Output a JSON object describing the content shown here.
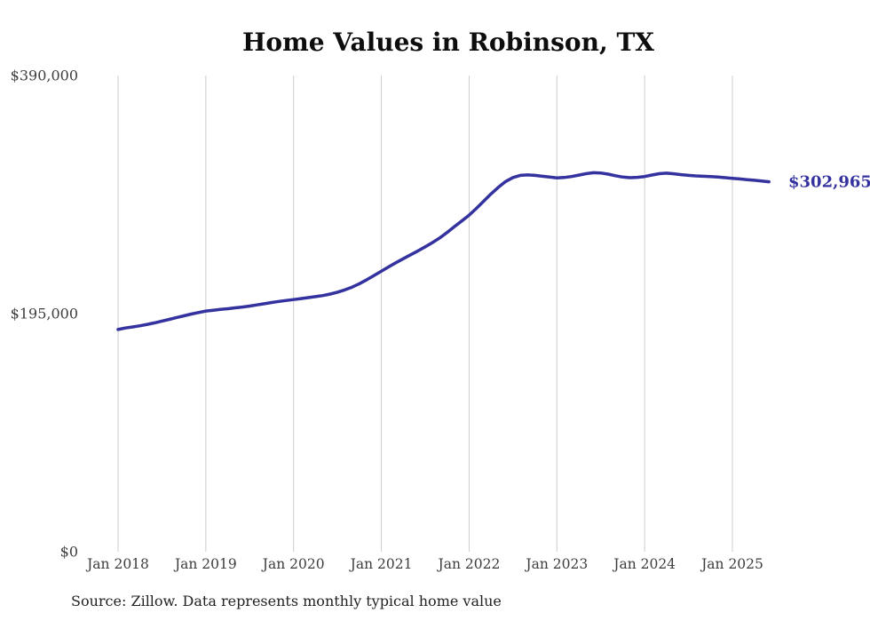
{
  "colors": {
    "background": "#ffffff",
    "line": "#34329f",
    "grid": "#cccccc",
    "title": "#0d0d0d",
    "axis_label": "#3d3d3d",
    "end_label": "#34329f",
    "source": "#222222"
  },
  "chart_data": {
    "type": "line",
    "title": "Home Values in Robinson, TX",
    "source_note": "Source: Zillow. Data represents monthly typical home value",
    "final_value": 302965,
    "final_value_label": "$302,965",
    "x_start": "2018-01",
    "x_freq": "monthly",
    "x_tick_labels": [
      "Jan 2018",
      "Jan 2019",
      "Jan 2020",
      "Jan 2021",
      "Jan 2022",
      "Jan 2023",
      "Jan 2024",
      "Jan 2025"
    ],
    "y_ticks": [
      {
        "value": 0,
        "label": "$0"
      },
      {
        "value": 195000,
        "label": "$195,000"
      },
      {
        "value": 390000,
        "label": "$390,000"
      }
    ],
    "ylim": [
      0,
      390000
    ],
    "grid": "vertical",
    "legend": "none",
    "series": [
      {
        "name": "Typical home value",
        "values": [
          182000,
          183200,
          184100,
          185000,
          186200,
          187400,
          188900,
          190300,
          191800,
          193200,
          194600,
          195900,
          197100,
          197800,
          198400,
          199000,
          199700,
          200400,
          201200,
          202100,
          203100,
          204100,
          205000,
          205800,
          206500,
          207300,
          208100,
          208900,
          209800,
          211000,
          212500,
          214400,
          216700,
          219500,
          222700,
          226200,
          229800,
          233300,
          236700,
          240000,
          243200,
          246400,
          249700,
          253200,
          257100,
          261500,
          266300,
          270900,
          275600,
          281200,
          287100,
          293000,
          298500,
          303200,
          306500,
          308200,
          308600,
          308200,
          307500,
          306800,
          306200,
          306500,
          307300,
          308400,
          309600,
          310400,
          310200,
          309200,
          307900,
          306800,
          306300,
          306600,
          307300,
          308500,
          309600,
          310000,
          309500,
          308800,
          308200,
          307800,
          307500,
          307200,
          306800,
          306300,
          305800,
          305300,
          304700,
          304200,
          303600,
          302965
        ]
      }
    ]
  }
}
